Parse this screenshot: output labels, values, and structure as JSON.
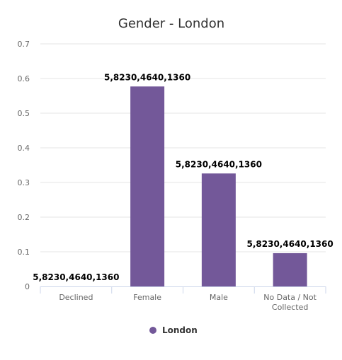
{
  "chart_data": {
    "type": "bar",
    "title": "Gender - London",
    "categories": [
      "Declined",
      "Female",
      "Male",
      "No Data / Not Collected"
    ],
    "series": [
      {
        "name": "London",
        "color": "#735899",
        "values": [
          0.0,
          0.577,
          0.326,
          0.096
        ],
        "data_labels": [
          "5,8230,4640,1360",
          "5,8230,4640,1360",
          "5,8230,4640,1360",
          "5,8230,4640,1360"
        ]
      }
    ],
    "ylim": [
      0,
      0.7
    ],
    "yticks": [
      "0",
      "0.1",
      "0.2",
      "0.3",
      "0.4",
      "0.5",
      "0.6",
      "0.7"
    ],
    "grid": true,
    "legend_position": "bottom-center"
  }
}
